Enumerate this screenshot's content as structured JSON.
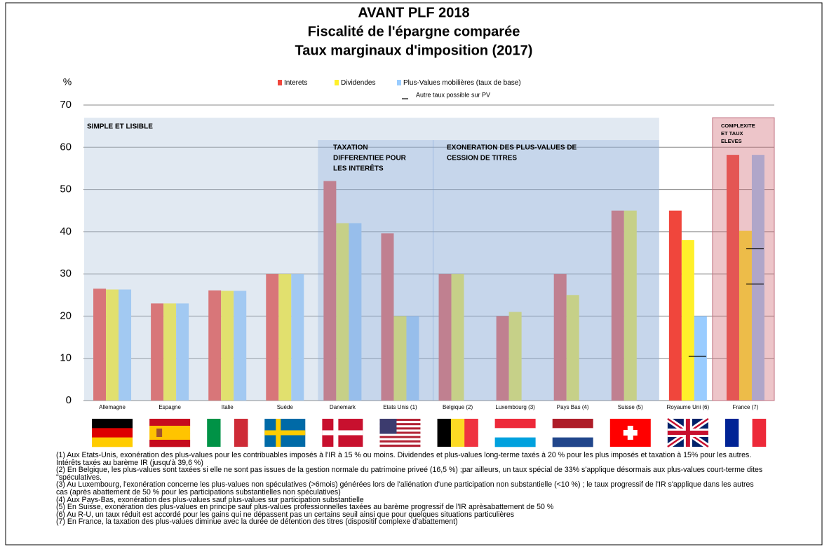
{
  "chart_data": {
    "type": "bar",
    "title": [
      "AVANT PLF 2018",
      "Fiscalité de l'épargne comparée",
      "Taux marginaux d'imposition (2017)"
    ],
    "y_label": "%",
    "categories": [
      "Allemagne",
      "Espagne",
      "Italie",
      "Suède",
      "Danemark",
      "Etats Unis (1)",
      "Belgique (2)",
      "Luxembourg (3)",
      "Pays Bas (4)",
      "Suisse (5)",
      "Royaume Uni (6)",
      "France (7)"
    ],
    "series": [
      {
        "name": "Interets",
        "color": "#f0463c",
        "values": [
          26.5,
          23,
          26.1,
          30,
          52,
          39.6,
          30,
          20,
          30,
          45,
          45,
          58.2
        ]
      },
      {
        "name": "Dividendes",
        "color": "#fff02a",
        "values": [
          26.3,
          23,
          26,
          30,
          42,
          20,
          30,
          21,
          25,
          45,
          38,
          40.2
        ]
      },
      {
        "name": "Plus-Values mobilières (taux de base)",
        "color": "#99ccff",
        "values": [
          26.3,
          23,
          26,
          30,
          42,
          20,
          null,
          null,
          null,
          null,
          20,
          58.2
        ]
      }
    ],
    "markers": {
      "name": "Autre taux possible sur PV",
      "color": "#000000",
      "values": [
        null,
        null,
        null,
        null,
        null,
        null,
        null,
        null,
        null,
        null,
        [
          10.5
        ],
        [
          36,
          27.6
        ]
      ]
    },
    "annotations": [
      {
        "lines": [
          "SIMPLE ET LISIBLE"
        ]
      },
      {
        "lines": [
          "TAXATION",
          "DIFFERENTIEE POUR",
          "LES INTERÊTS"
        ]
      },
      {
        "lines": [
          "EXONERATION DES PLUS-VALUES DE",
          "CESSION DE TITRES"
        ]
      },
      {
        "lines": [
          "COMPLEXITE",
          "ET TAUX",
          "ELEVES"
        ]
      }
    ],
    "ylim": [
      0,
      70
    ],
    "yticks": [
      0,
      10,
      20,
      30,
      40,
      50,
      60,
      70
    ],
    "grid": true
  },
  "notes": [
    "(1) Aux Etats-Unis, exonération des plus-values pour les contribuables imposés à l'IR à 15 % ou moins.  Dividendes et plus-values long-terme taxés à 20 % pour les plus imposés  et taxation à 15% pour les autres. Intérêts taxés au barème IR (jusqu'à 39,6 %)",
    "(2) En Belgique, les plus-values sont taxées si elle ne sont pas issues de la gestion normale du patrimoine priveé (16,5 %) ;par ailleurs, un taux spécial de 33% s'applique désormais aux plus-values court-terme dites \"spéculatives.",
    "(3) Au Luxembourg, l'exonération concerne les plus-values non spéculatives (>6mois) générées lors de l'aliénation d'une participation non substantielle (<10 %) ; le taux progressif de l'IR s'applique dans les autres cas (après abattement de 50 % pour les participations substantielles non spéculatives)",
    "(4) Aux Pays-Bas, exonération des plus-values sauf plus-values sur participation substantielle",
    "(5) En Suisse, exonération des plus-values en principe sauf plus-values professionnelles taxées au barème progressif de l'IR aprèsabattement de  50 %",
    "(6) Au R-U, un taux réduit est accordé pour les gains qui ne dépassent pas un certains seuil ainsi que pour quelques situations particulières",
    "(7) En France, la taxation des plus-values diminue avec la durée de détention des titres (dispositif complexe d'abattement)"
  ]
}
